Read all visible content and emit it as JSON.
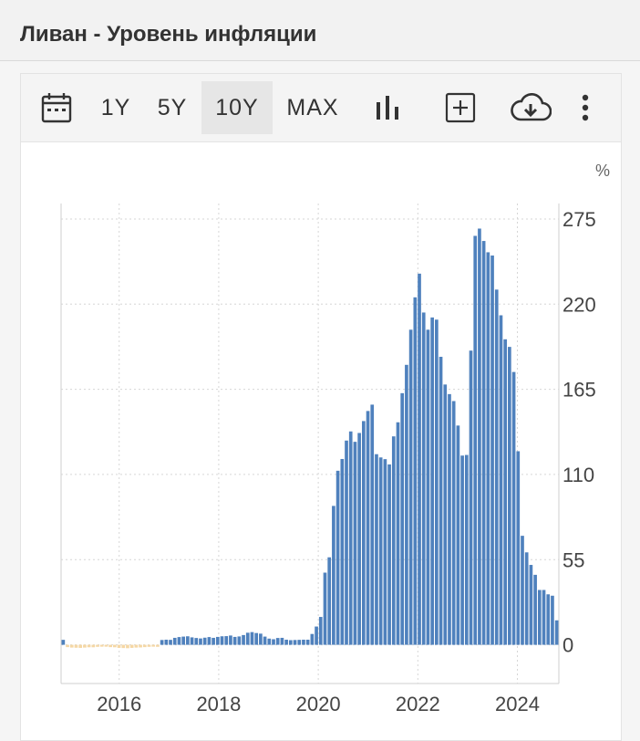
{
  "header": {
    "title": "Ливан - Уровень инфляции"
  },
  "toolbar": {
    "calendar_icon": "calendar-icon",
    "ranges": [
      "1Y",
      "5Y",
      "10Y",
      "MAX"
    ],
    "active_range": "10Y",
    "chart_type_icon": "bar-chart-icon",
    "compare_icon": "add-box-icon",
    "download_icon": "cloud-download-icon",
    "menu_icon": "more-vertical-icon"
  },
  "colors": {
    "positive": "#4f81bd",
    "negative": "#f5d7a4",
    "grid": "#d6d6d6"
  },
  "chart_data": {
    "type": "bar",
    "unit": "%",
    "ylim": [
      -25,
      285
    ],
    "yticks": [
      0,
      55,
      110,
      165,
      220,
      275
    ],
    "xtick_labels": [
      "2016",
      "2018",
      "2020",
      "2022",
      "2024"
    ],
    "xtick_positions": [
      2016.0,
      2018.0,
      2020.0,
      2022.0,
      2024.0
    ],
    "x_start": 2014.833,
    "x_end": 2024.833,
    "grid": true,
    "values": [
      3.2,
      -1.5,
      -1.8,
      -1.9,
      -2.0,
      -1.8,
      -1.6,
      -1.6,
      -1.3,
      -1.2,
      -1.2,
      -1.5,
      -1.6,
      -2.0,
      -2.1,
      -2.2,
      -2.0,
      -1.8,
      -1.7,
      -1.5,
      -1.3,
      -1.2,
      -1.3,
      3.1,
      3.3,
      3.2,
      4.5,
      5.0,
      5.3,
      5.5,
      4.8,
      4.4,
      4.1,
      4.6,
      5.0,
      4.5,
      5.1,
      5.5,
      5.6,
      6.0,
      5.1,
      5.4,
      6.3,
      7.8,
      8.2,
      7.6,
      7.2,
      5.3,
      4.0,
      3.6,
      4.4,
      4.5,
      3.3,
      3.0,
      3.1,
      3.2,
      3.3,
      3.3,
      7.0,
      11.8,
      18.0,
      46.6,
      56.5,
      89.7,
      112.4,
      120.0,
      131.9,
      137.8,
      131.1,
      136.8,
      144.5,
      151.0,
      155.1,
      123.1,
      121.0,
      119.9,
      116.5,
      134.6,
      143.7,
      162.5,
      180.8,
      203.5,
      224.4,
      239.7,
      214.6,
      203.5,
      211.4,
      210.0,
      186.0,
      168.1,
      161.9,
      157.4,
      141.6,
      122.2,
      122.6,
      190.0,
      264.1,
      268.8,
      260.8,
      253.5,
      251.4,
      229.4,
      212.8,
      197.3,
      192.4,
      176.2,
      125.0,
      70.4,
      59.7,
      51.6,
      45.2,
      35.4,
      35.4,
      32.6,
      31.7,
      15.8
    ]
  }
}
